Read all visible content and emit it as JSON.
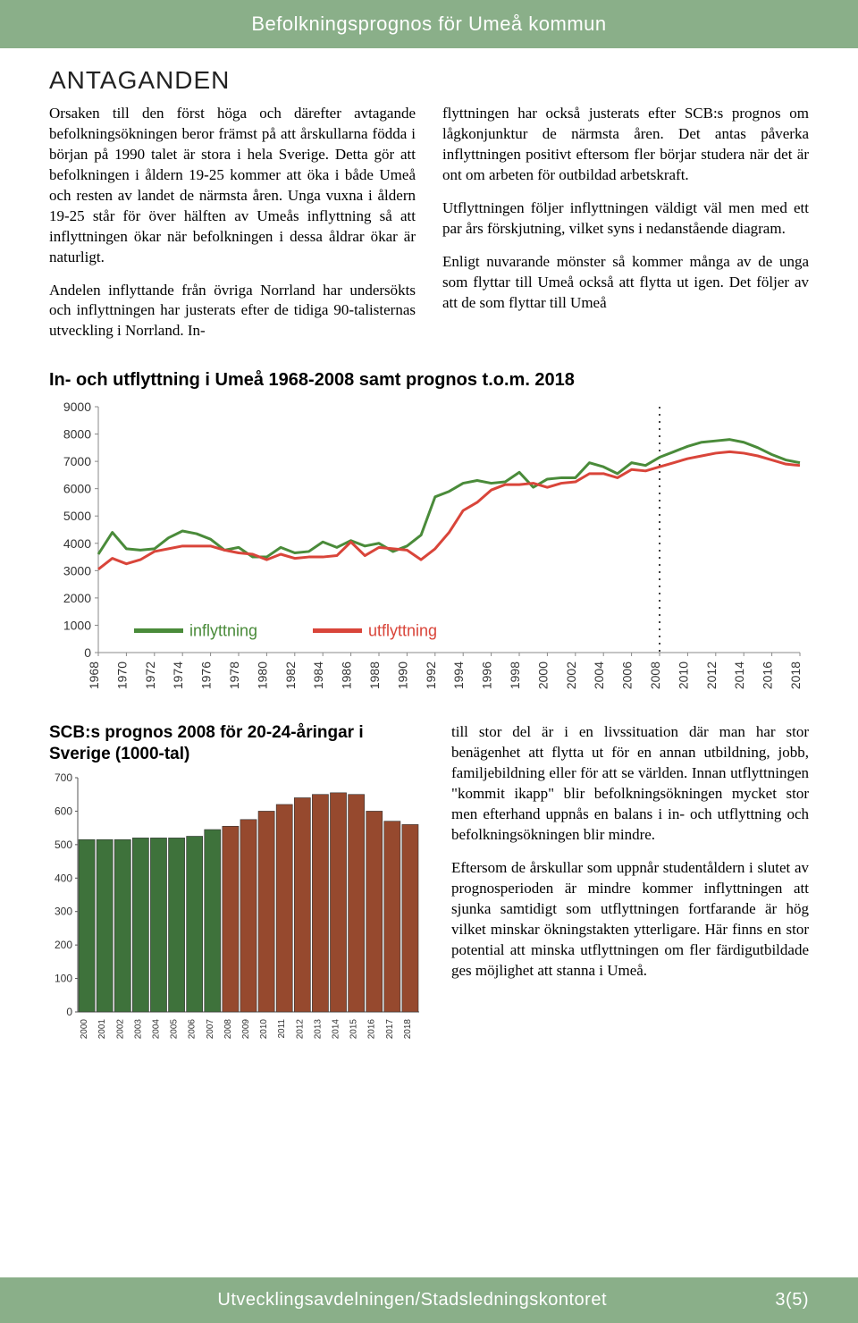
{
  "header": {
    "title": "Befolkningsprognos för Umeå kommun"
  },
  "section_title": "ANTAGANDEN",
  "body": {
    "left_p1": "Orsaken till den först höga och därefter avtagande befolkningsökningen beror främst på att årskullarna födda i början på 1990 talet är stora i hela Sverige. Detta gör att befolkningen i åldern 19-25 kommer att öka i både Umeå och resten av landet de närmsta åren. Unga vuxna i åldern 19-25 står för över hälften av Umeås inflyttning så att inflyttningen ökar när befolkningen i dessa åldrar ökar är naturligt.",
    "left_p2": "Andelen inflyttande från övriga Norrland har undersökts och inflyttningen har justerats efter de tidiga 90-talisternas utveckling i Norrland. In-",
    "right_p1": "flyttningen har också justerats efter SCB:s prognos om lågkonjunktur de närmsta åren. Det antas påverka inflyttningen positivt eftersom fler börjar studera när det är ont om arbeten för outbildad arbetskraft.",
    "right_p2": "Utflyttningen följer inflyttningen väldigt väl men med ett par års förskjutning, vilket syns i nedanstående diagram.",
    "right_p3": "Enligt nuvarande mönster så kommer många av de unga som flyttar till Umeå också att flytta ut igen. Det följer av att de som flyttar till Umeå"
  },
  "line_chart": {
    "title": "In- och utflyttning i Umeå 1968-2008 samt prognos t.o.m. 2018",
    "type": "line",
    "ylim": [
      0,
      9000
    ],
    "ytick_step": 1000,
    "yticks": [
      0,
      1000,
      2000,
      3000,
      4000,
      5000,
      6000,
      7000,
      8000,
      9000
    ],
    "x_start": 1968,
    "x_end": 2018,
    "xtick_step": 2,
    "divider_year": 2008,
    "series": [
      {
        "name": "inflyttning",
        "color": "#4a8b3a",
        "values": [
          3600,
          4400,
          3800,
          3750,
          3800,
          4200,
          4450,
          4350,
          4150,
          3750,
          3850,
          3500,
          3500,
          3850,
          3650,
          3700,
          4050,
          3850,
          4100,
          3900,
          4000,
          3700,
          3900,
          4300,
          5700,
          5900,
          6200,
          6300,
          6200,
          6250,
          6600,
          6050,
          6350,
          6400,
          6400,
          6950,
          6800,
          6550,
          6950,
          6850,
          7150,
          7350,
          7550,
          7700,
          7750,
          7800,
          7700,
          7500,
          7250,
          7050,
          6950
        ]
      },
      {
        "name": "utflyttning",
        "color": "#d9453a",
        "values": [
          3050,
          3450,
          3250,
          3400,
          3700,
          3800,
          3900,
          3900,
          3900,
          3750,
          3650,
          3600,
          3400,
          3600,
          3450,
          3500,
          3500,
          3550,
          4050,
          3550,
          3850,
          3800,
          3750,
          3400,
          3800,
          4400,
          5200,
          5500,
          5950,
          6150,
          6150,
          6200,
          6050,
          6200,
          6250,
          6550,
          6550,
          6400,
          6700,
          6650,
          6800,
          6950,
          7100,
          7200,
          7300,
          7350,
          7300,
          7200,
          7050,
          6900,
          6850
        ]
      }
    ],
    "legend_labels": {
      "in": "inflyttning",
      "ut": "utflyttning"
    },
    "background_color": "#ffffff",
    "axis_color": "#888888",
    "tick_color": "#888888",
    "line_width": 3,
    "label_fontsize": 15,
    "tick_fontsize": 14
  },
  "bar_chart": {
    "title": "SCB:s prognos 2008 för 20-24-åringar i Sverige (1000-tal)",
    "type": "bar",
    "ylim": [
      0,
      700
    ],
    "ytick_step": 100,
    "yticks": [
      0,
      100,
      200,
      300,
      400,
      500,
      600,
      700
    ],
    "years": [
      2000,
      2001,
      2002,
      2003,
      2004,
      2005,
      2006,
      2007,
      2008,
      2009,
      2010,
      2011,
      2012,
      2013,
      2014,
      2015,
      2016,
      2017,
      2018
    ],
    "values": [
      515,
      515,
      515,
      520,
      520,
      520,
      525,
      545,
      555,
      575,
      600,
      620,
      640,
      650,
      655,
      650,
      600,
      570,
      560
    ],
    "split_year": 2008,
    "color_past": "#3e723b",
    "color_future": "#96492e",
    "border_color": "#333333",
    "background_color": "#ffffff",
    "axis_color": "#555555",
    "bar_gap": 2,
    "tick_fontsize": 10
  },
  "bottom_text": {
    "p1": "till stor del är i en livssituation där man har stor benägenhet att flytta ut för en annan utbildning, jobb, familjebildning eller för att se världen. Innan utflyttningen \"kommit ikapp\" blir befolkningsökningen mycket stor men efterhand uppnås en balans i in- och utflyttning och befolkningsökningen blir mindre.",
    "p2": "Eftersom de årskullar som uppnår studentåldern i slutet av prognosperioden är mindre kommer inflyttningen att sjunka samtidigt som utflyttningen fortfarande är hög vilket minskar ökningstakten ytterligare. Här finns en stor potential att minska utflyttningen om fler färdigutbildade ges möjlighet att stanna i Umeå."
  },
  "footer": {
    "dept": "Utvecklingsavdelningen/Stadsledningskontoret",
    "page": "3(5)"
  }
}
